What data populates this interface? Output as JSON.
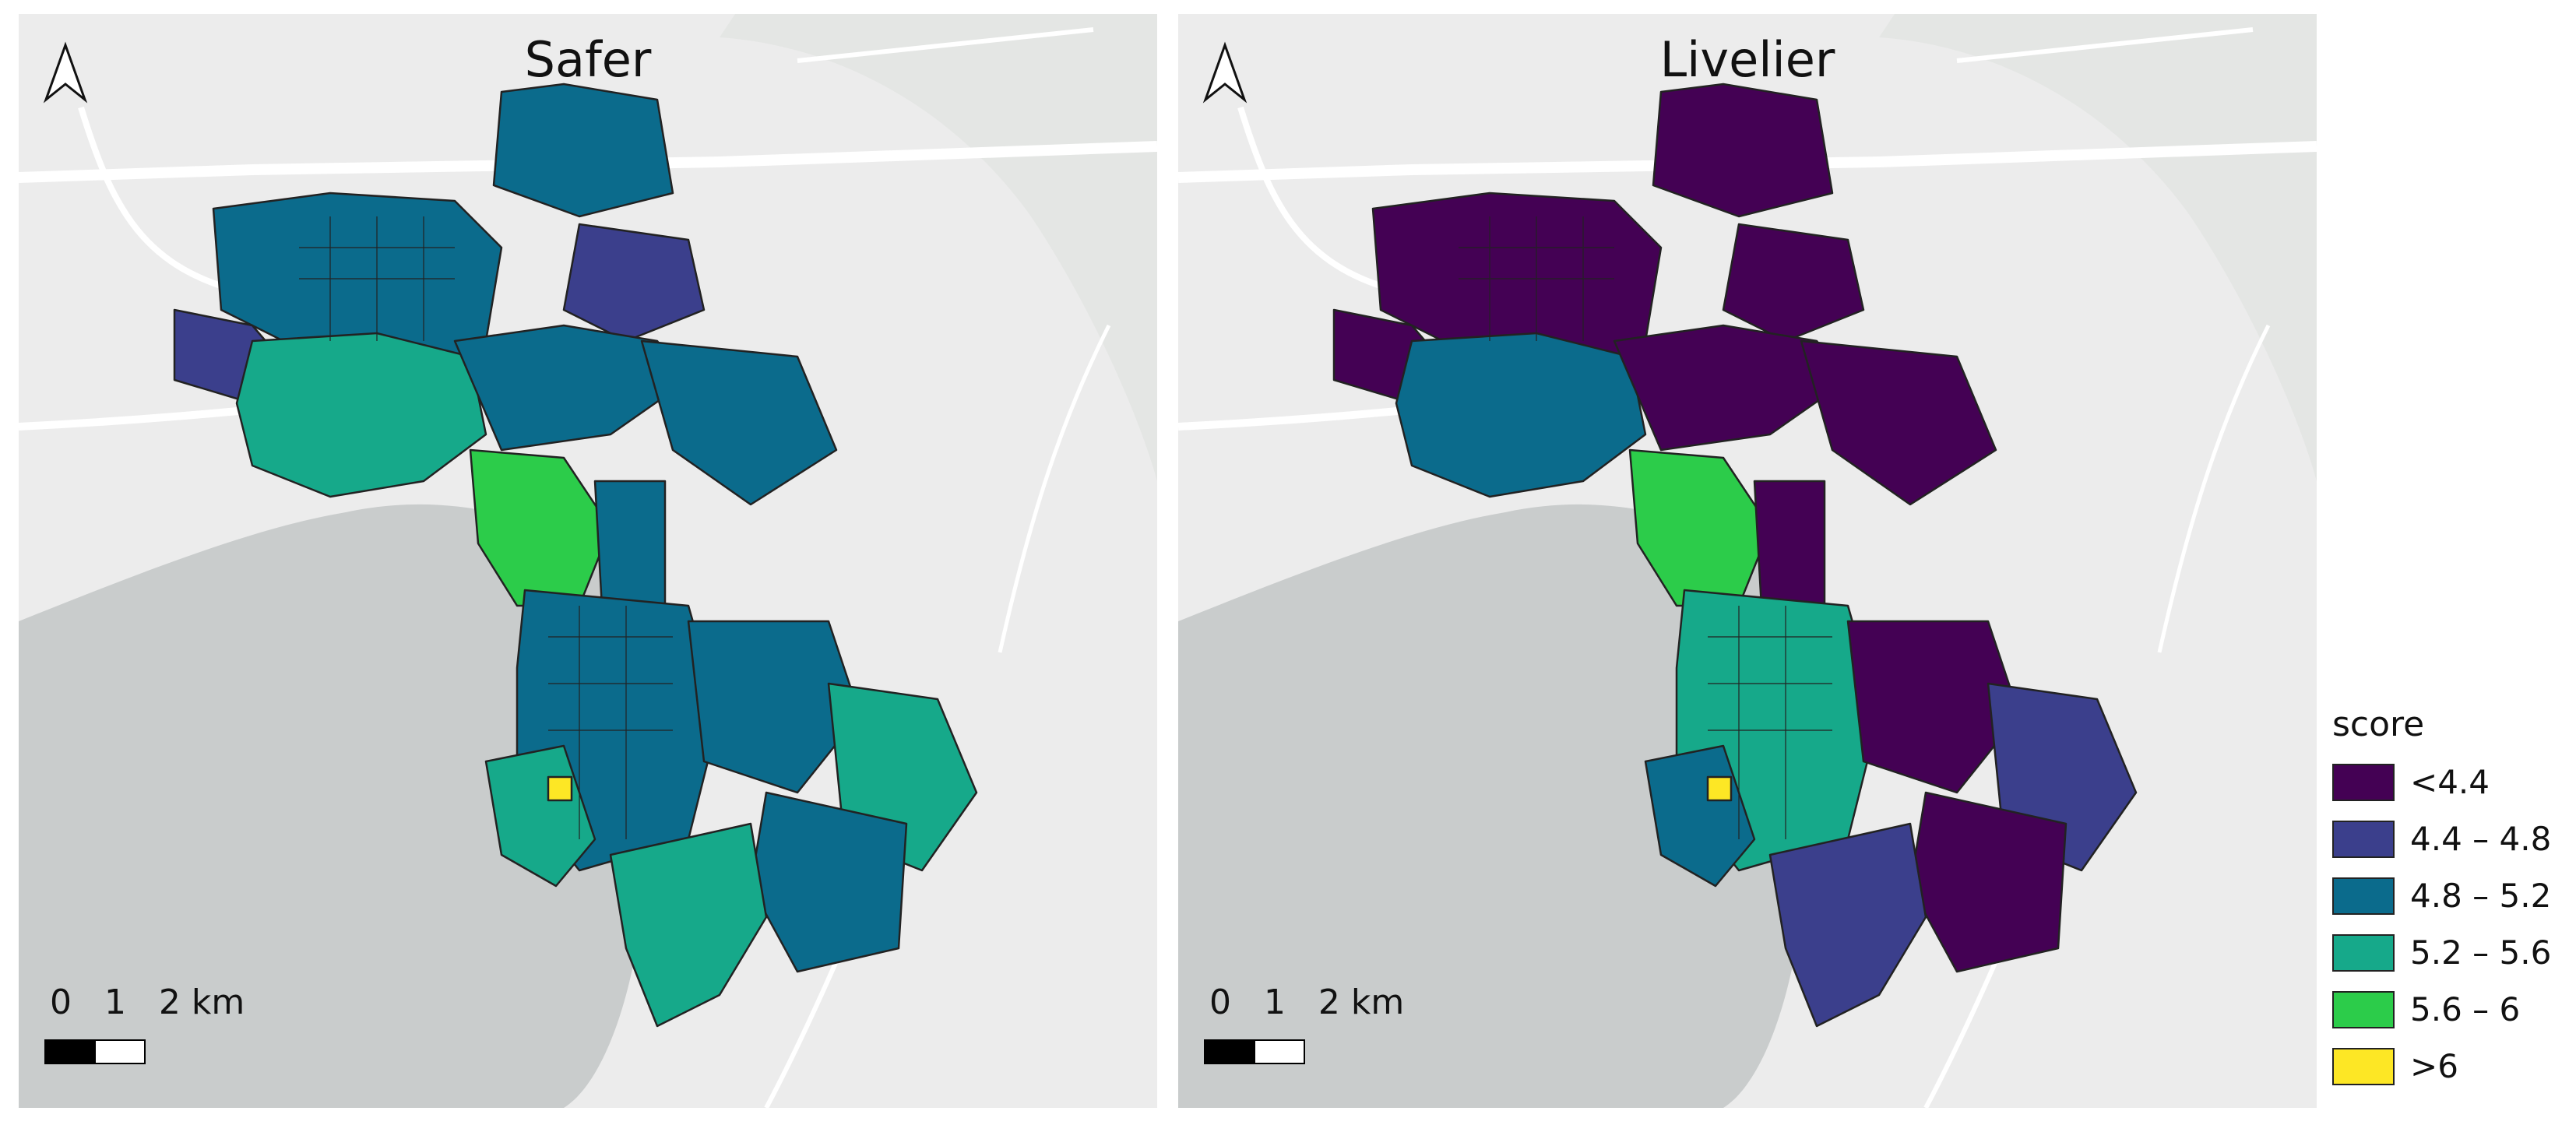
{
  "maps": [
    {
      "title": "Safer"
    },
    {
      "title": "Livelier"
    }
  ],
  "scale_bar": {
    "label": "0   1   2 km"
  },
  "legend": {
    "title": "score",
    "items": [
      {
        "label": "<4.4",
        "color": "#440154"
      },
      {
        "label": "4.4 – 4.8",
        "color": "#3b3f8c"
      },
      {
        "label": "4.8 – 5.2",
        "color": "#0b6b8c"
      },
      {
        "label": "5.2 – 5.6",
        "color": "#16a98a"
      },
      {
        "label": "5.6 – 6",
        "color": "#2ccc4a"
      },
      {
        "label": ">6",
        "color": "#fde725"
      }
    ]
  },
  "basemap": {
    "land": "#ececec",
    "water": "#c9cccc",
    "roads": "#ffffff",
    "boundary": "#222222"
  }
}
